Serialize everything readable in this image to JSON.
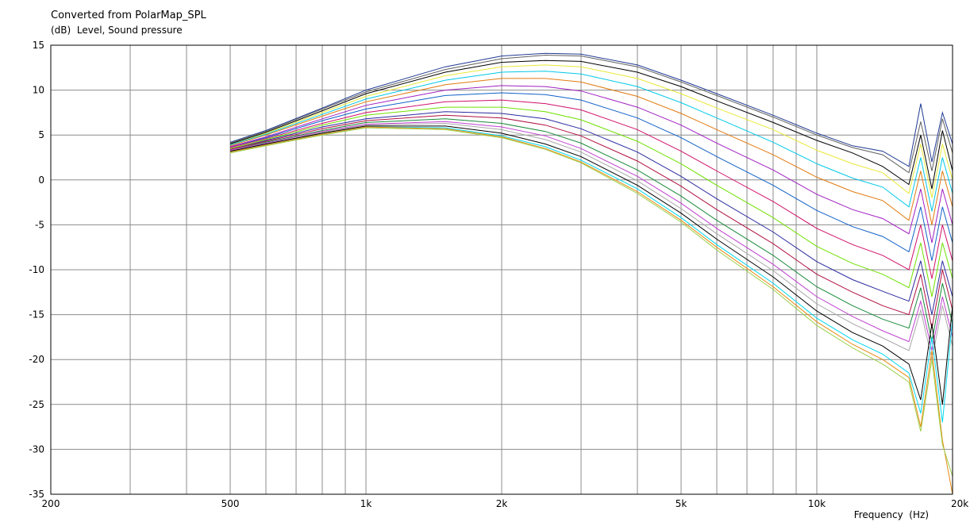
{
  "chart_data": {
    "type": "line",
    "title": "Converted from PolarMap_SPL",
    "ylabel_unit": "(dB)",
    "ylabel": "Level, Sound pressure",
    "xlabel": "Frequency  (Hz)",
    "x_scale": "log",
    "xlim": [
      200,
      20000
    ],
    "ylim": [
      -35,
      15
    ],
    "grid": true,
    "x_ticks": [
      {
        "value": 200,
        "label": "200"
      },
      {
        "value": 500,
        "label": "500"
      },
      {
        "value": 1000,
        "label": "1k"
      },
      {
        "value": 2000,
        "label": "2k"
      },
      {
        "value": 5000,
        "label": "5k"
      },
      {
        "value": 10000,
        "label": "10k"
      },
      {
        "value": 20000,
        "label": "20k"
      }
    ],
    "y_ticks": [
      15,
      10,
      5,
      0,
      -5,
      -10,
      -15,
      -20,
      -25,
      -30,
      -35
    ],
    "x": [
      500,
      600,
      800,
      1000,
      1500,
      2000,
      2500,
      3000,
      4000,
      5000,
      6000,
      8000,
      10000,
      12000,
      14000,
      16000,
      17000,
      18000,
      19000,
      20000
    ],
    "series": [
      {
        "color": "#1f3a93",
        "values": [
          4.2,
          5.5,
          8.0,
          10.0,
          12.6,
          13.8,
          14.1,
          14.0,
          12.8,
          11.1,
          9.6,
          7.2,
          5.2,
          3.8,
          3.2,
          1.5,
          8.5,
          2.0,
          7.5,
          4.0
        ]
      },
      {
        "color": "#606060",
        "values": [
          4.1,
          5.4,
          7.9,
          9.8,
          12.3,
          13.5,
          13.9,
          13.8,
          12.6,
          10.9,
          9.4,
          7.0,
          5.0,
          3.6,
          2.8,
          0.8,
          6.5,
          1.0,
          6.8,
          3.0
        ]
      },
      {
        "color": "#000000",
        "values": [
          4.0,
          5.3,
          7.7,
          9.6,
          12.0,
          13.1,
          13.3,
          13.2,
          12.0,
          10.4,
          8.8,
          6.4,
          4.4,
          3.0,
          1.5,
          -0.5,
          5.0,
          -1.0,
          5.5,
          1.0
        ]
      },
      {
        "color": "#e8e838",
        "values": [
          3.9,
          5.2,
          7.5,
          9.3,
          11.6,
          12.6,
          12.8,
          12.6,
          11.3,
          9.6,
          8.0,
          5.6,
          3.3,
          1.8,
          0.8,
          -1.5,
          4.0,
          -2.0,
          4.0,
          0.0
        ]
      },
      {
        "color": "#00c8e8",
        "values": [
          3.9,
          5.1,
          7.3,
          9.0,
          11.1,
          12.0,
          12.1,
          11.8,
          10.4,
          8.6,
          6.9,
          4.2,
          1.8,
          0.2,
          -0.8,
          -3.0,
          2.5,
          -3.5,
          2.5,
          -1.5
        ]
      },
      {
        "color": "#e07a10",
        "values": [
          3.8,
          5.0,
          7.1,
          8.7,
          10.6,
          11.3,
          11.3,
          10.9,
          9.3,
          7.4,
          5.6,
          2.8,
          0.3,
          -1.3,
          -2.3,
          -4.5,
          1.0,
          -5.0,
          1.0,
          -3.0
        ]
      },
      {
        "color": "#a020c0",
        "values": [
          3.7,
          4.8,
          6.8,
          8.3,
          10.0,
          10.5,
          10.4,
          9.9,
          8.1,
          6.1,
          4.1,
          1.1,
          -1.6,
          -3.3,
          -4.3,
          -6.0,
          -1.0,
          -7.0,
          -1.0,
          -5.0
        ]
      },
      {
        "color": "#1060c8",
        "values": [
          3.6,
          4.7,
          6.6,
          7.9,
          9.4,
          9.7,
          9.5,
          8.9,
          6.9,
          4.7,
          2.6,
          -0.6,
          -3.4,
          -5.2,
          -6.3,
          -8.0,
          -3.0,
          -9.0,
          -3.0,
          -7.0
        ]
      },
      {
        "color": "#d0106a",
        "values": [
          3.6,
          4.6,
          6.3,
          7.5,
          8.7,
          8.9,
          8.5,
          7.8,
          5.6,
          3.2,
          1.0,
          -2.4,
          -5.4,
          -7.2,
          -8.4,
          -10.0,
          -5.0,
          -11.0,
          -5.0,
          -9.0
        ]
      },
      {
        "color": "#70e000",
        "values": [
          3.5,
          4.5,
          6.1,
          7.2,
          8.1,
          8.1,
          7.6,
          6.7,
          4.3,
          1.8,
          -0.6,
          -4.2,
          -7.4,
          -9.3,
          -10.5,
          -12.0,
          -7.0,
          -13.0,
          -7.0,
          -11.0
        ]
      },
      {
        "color": "#2a2aa0",
        "values": [
          3.4,
          4.4,
          5.9,
          6.8,
          7.6,
          7.4,
          6.8,
          5.7,
          3.1,
          0.4,
          -2.1,
          -5.8,
          -9.1,
          -11.1,
          -12.4,
          -13.5,
          -9.0,
          -15.0,
          -9.0,
          -13.0
        ]
      },
      {
        "color": "#b01040",
        "values": [
          3.4,
          4.3,
          5.7,
          6.6,
          7.2,
          6.9,
          6.1,
          4.9,
          2.1,
          -0.7,
          -3.3,
          -7.1,
          -10.5,
          -12.5,
          -14.0,
          -15.0,
          -10.5,
          -16.5,
          -10.0,
          -14.5
        ]
      },
      {
        "color": "#1a8a3a",
        "values": [
          3.3,
          4.2,
          5.5,
          6.4,
          6.8,
          6.3,
          5.4,
          4.1,
          1.1,
          -1.8,
          -4.5,
          -8.4,
          -11.9,
          -14.0,
          -15.5,
          -16.5,
          -12.0,
          -18.0,
          -11.5,
          -16.0
        ]
      },
      {
        "color": "#c040d0",
        "values": [
          3.3,
          4.1,
          5.4,
          6.2,
          6.5,
          5.9,
          4.9,
          3.5,
          0.4,
          -2.6,
          -5.4,
          -9.4,
          -13.0,
          -15.2,
          -16.8,
          -18.0,
          -13.5,
          -19.0,
          -13.0,
          -17.5
        ]
      },
      {
        "color": "#a8a8a8",
        "values": [
          3.2,
          4.0,
          5.3,
          6.1,
          6.3,
          5.6,
          4.5,
          3.1,
          -0.1,
          -3.2,
          -6.0,
          -10.1,
          -13.8,
          -16.0,
          -17.6,
          -19.0,
          -14.5,
          -20.0,
          -14.0,
          -18.5
        ]
      },
      {
        "color": "#000000",
        "values": [
          3.2,
          4.0,
          5.2,
          6.0,
          6.0,
          5.2,
          4.0,
          2.6,
          -0.6,
          -3.7,
          -6.6,
          -10.8,
          -14.6,
          -17.0,
          -18.5,
          -20.5,
          -24.5,
          -16.0,
          -25.0,
          -14.0
        ]
      },
      {
        "color": "#00d8f0",
        "values": [
          3.1,
          3.9,
          5.1,
          5.9,
          5.8,
          4.9,
          3.7,
          2.2,
          -1.0,
          -4.2,
          -7.2,
          -11.5,
          -15.4,
          -17.8,
          -19.4,
          -21.5,
          -26.0,
          -17.5,
          -27.0,
          -15.5
        ]
      },
      {
        "color": "#e88a10",
        "values": [
          3.1,
          3.9,
          5.1,
          5.9,
          5.7,
          4.8,
          3.5,
          2.0,
          -1.3,
          -4.5,
          -7.5,
          -11.9,
          -15.8,
          -18.3,
          -20.0,
          -22.0,
          -27.5,
          -19.0,
          -29.0,
          -35.0
        ]
      },
      {
        "color": "#9ad04a",
        "values": [
          3.0,
          3.8,
          5.0,
          5.8,
          5.6,
          4.7,
          3.4,
          1.9,
          -1.5,
          -4.7,
          -7.8,
          -12.2,
          -16.2,
          -18.7,
          -20.5,
          -22.5,
          -28.0,
          -20.0,
          -29.5,
          -33.0
        ]
      }
    ]
  }
}
